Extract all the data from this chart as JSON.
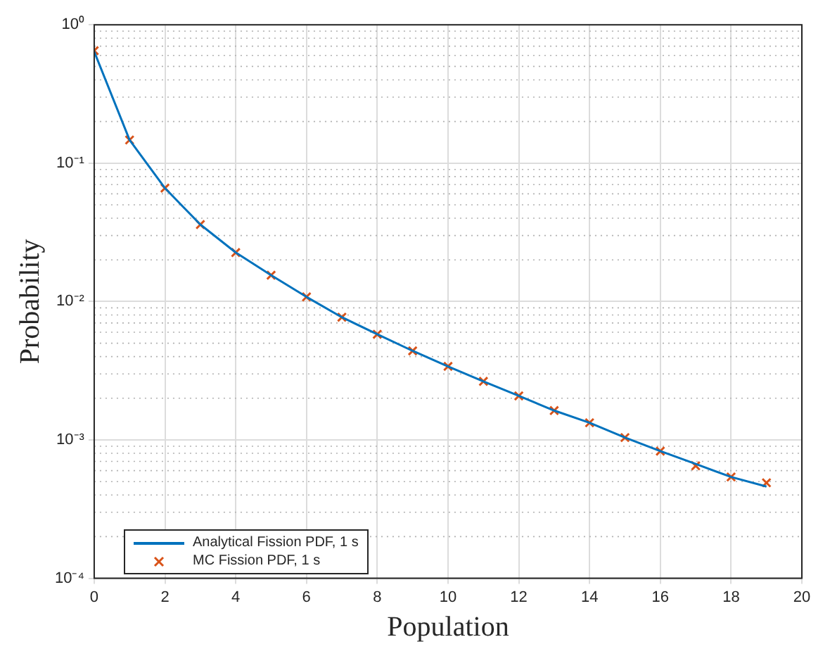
{
  "chart_data": {
    "type": "line",
    "xlabel": "Population",
    "ylabel": "Probability",
    "x": [
      0,
      1,
      2,
      3,
      4,
      5,
      6,
      7,
      8,
      9,
      10,
      11,
      12,
      13,
      14,
      15,
      16,
      17,
      18,
      19
    ],
    "series": [
      {
        "name": "Analytical Fission PDF, 1 s",
        "color": "#0072bd",
        "marker": "none",
        "values": [
          0.64,
          0.147,
          0.066,
          0.036,
          0.0226,
          0.0155,
          0.0108,
          0.0077,
          0.0058,
          0.0044,
          0.0034,
          0.00265,
          0.00208,
          0.00163,
          0.00133,
          0.00104,
          0.00083,
          0.00067,
          0.00054,
          0.00046
        ]
      },
      {
        "name": "MC Fission PDF, 1 s",
        "type": "scatter",
        "color": "#d95319",
        "marker": "cross",
        "values": [
          0.65,
          0.147,
          0.066,
          0.036,
          0.0226,
          0.0155,
          0.0108,
          0.0077,
          0.0058,
          0.0044,
          0.0034,
          0.00265,
          0.00208,
          0.00163,
          0.00133,
          0.00104,
          0.00083,
          0.00065,
          0.00054,
          0.00049
        ]
      }
    ],
    "log": "y",
    "xlim": [
      0,
      20
    ],
    "xticks": [
      0,
      2,
      4,
      6,
      8,
      10,
      12,
      14,
      16,
      18,
      20
    ],
    "ylim": [
      0.0001,
      1
    ],
    "yticks": [
      {
        "value": 0.0001,
        "label": "10⁻⁴"
      },
      {
        "value": 0.001,
        "label": "10⁻³"
      },
      {
        "value": 0.01,
        "label": "10⁻²"
      },
      {
        "value": 0.1,
        "label": "10⁻¹"
      },
      {
        "value": 1,
        "label": "10⁰"
      }
    ],
    "grid": true,
    "legend": "bottom left"
  }
}
